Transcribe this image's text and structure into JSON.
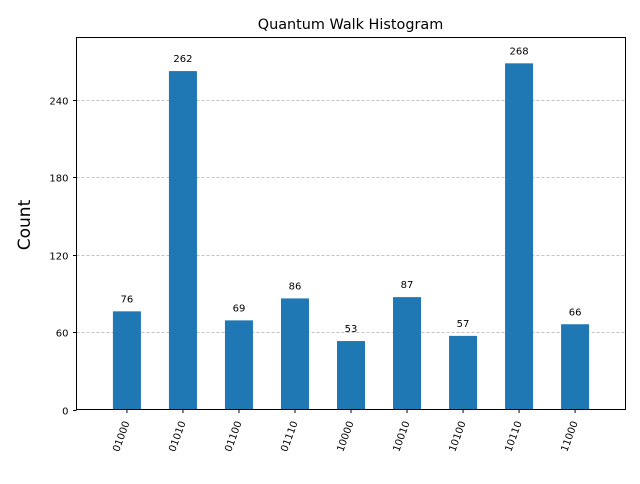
{
  "chart_data": {
    "type": "bar",
    "title": "Quantum Walk Histogram",
    "xlabel": "",
    "ylabel": "Count",
    "categories": [
      "01000",
      "01010",
      "01100",
      "01110",
      "10000",
      "10010",
      "10100",
      "10110",
      "11000"
    ],
    "values": [
      76,
      262,
      69,
      86,
      53,
      87,
      57,
      268,
      66
    ],
    "ylim": [
      0,
      288
    ],
    "yticks": [
      0,
      60,
      120,
      180,
      240
    ],
    "grid": "horizontal dashed",
    "bar_color": "#1f77b4",
    "grid_color": "#b0b0b0",
    "legend": "none"
  }
}
